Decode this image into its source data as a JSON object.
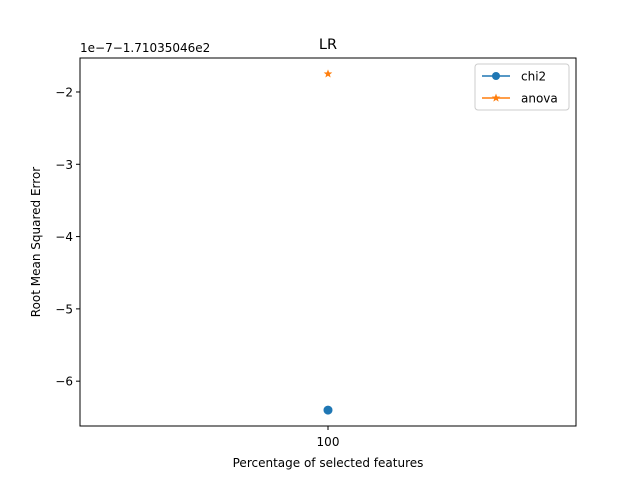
{
  "chart_data": {
    "type": "scatter",
    "title": "LR",
    "xlabel": "Percentage of selected features",
    "ylabel": "Root Mean Squared Error",
    "offset_label": "1e−7−1.71035046e2",
    "x_ticks": [
      {
        "value": 100,
        "label": "100"
      }
    ],
    "y_ticks": [
      {
        "value": -2,
        "label": "−2"
      },
      {
        "value": -3,
        "label": "−3"
      },
      {
        "value": -4,
        "label": "−4"
      },
      {
        "value": -5,
        "label": "−5"
      },
      {
        "value": -6,
        "label": "−6"
      }
    ],
    "xlim": [
      99.95,
      100.05
    ],
    "ylim": [
      -6.62,
      -1.53
    ],
    "grid": false,
    "legend_position": "top-right",
    "series": [
      {
        "name": "chi2",
        "color": "#1f77b4",
        "marker": "circle",
        "x": [
          100
        ],
        "y": [
          -6.4
        ]
      },
      {
        "name": "anova",
        "color": "#ff7f0e",
        "marker": "star",
        "x": [
          100
        ],
        "y": [
          -1.75
        ]
      }
    ]
  }
}
